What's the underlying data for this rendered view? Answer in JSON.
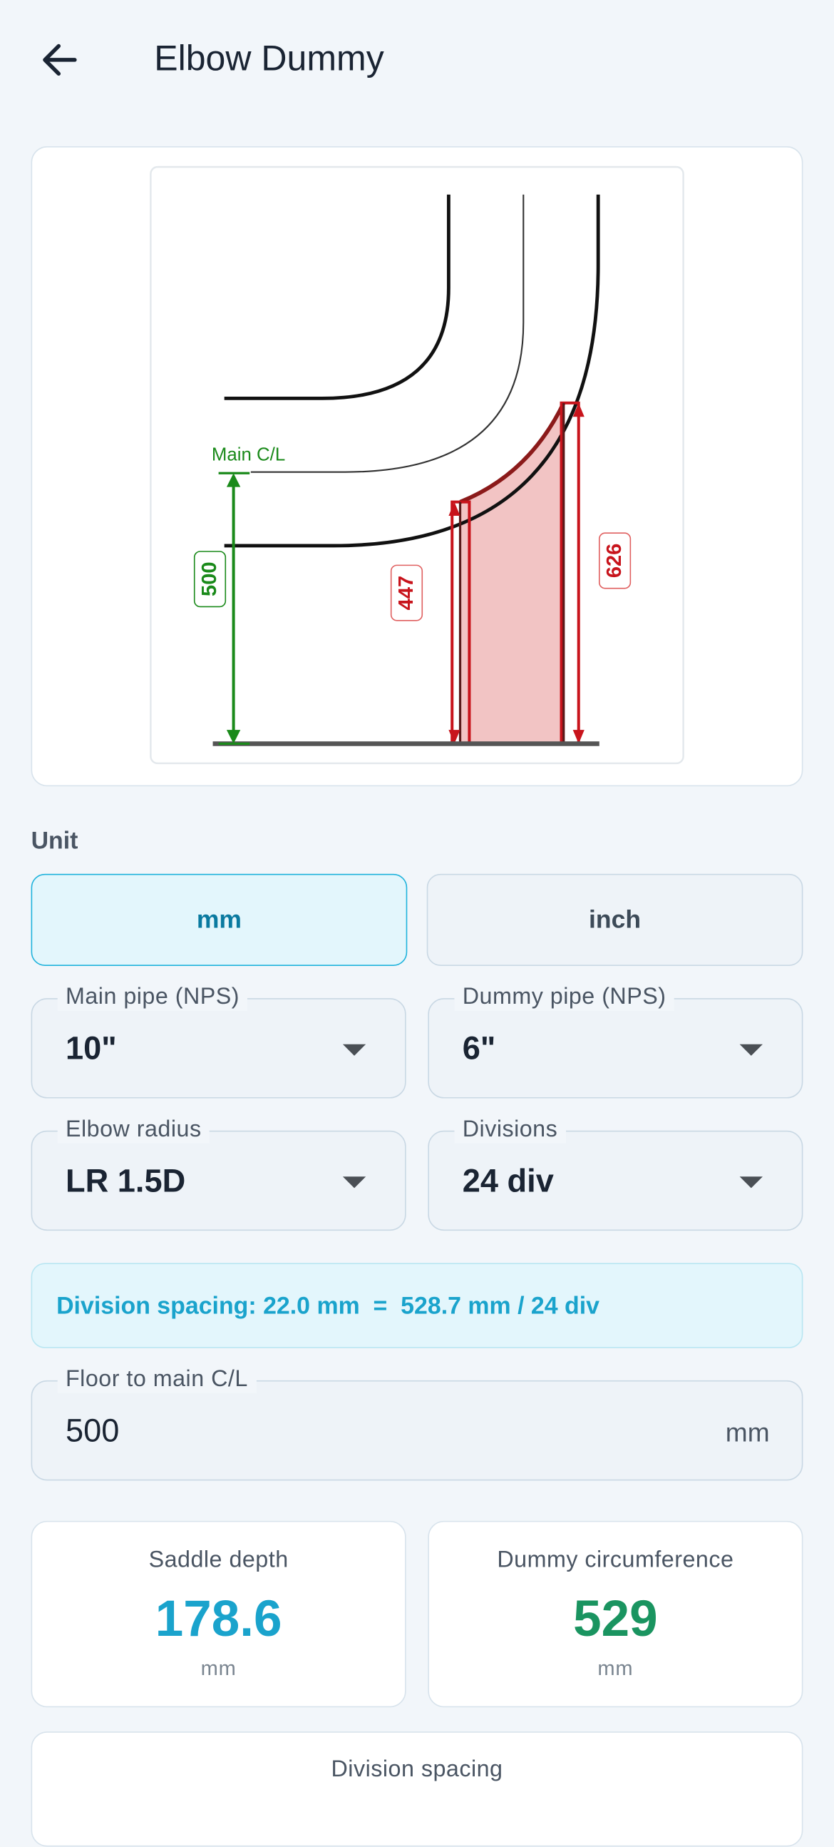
{
  "header": {
    "title": "Elbow Dummy"
  },
  "diagram": {
    "main_cl_label": "Main C/L",
    "floor_height": "500",
    "dim_left": "447",
    "dim_right": "626"
  },
  "unit": {
    "label": "Unit",
    "options": [
      "mm",
      "inch"
    ]
  },
  "fields": [
    {
      "label": "Main pipe (NPS)",
      "value": "10\""
    },
    {
      "label": "Dummy pipe (NPS)",
      "value": "6\""
    },
    {
      "label": "Elbow radius",
      "value": "LR 1.5D"
    },
    {
      "label": "Divisions",
      "value": "24 div"
    }
  ],
  "info": "Division spacing: 22.0 mm  =  528.7 mm / 24 div",
  "floor_input": {
    "label": "Floor to main C/L",
    "value": "500",
    "unit": "mm"
  },
  "results": [
    {
      "label": "Saddle depth",
      "value": "178.6",
      "unit": "mm"
    },
    {
      "label": "Dummy circumference",
      "value": "529",
      "unit": "mm"
    }
  ],
  "bottom_card": {
    "label": "Division spacing"
  }
}
